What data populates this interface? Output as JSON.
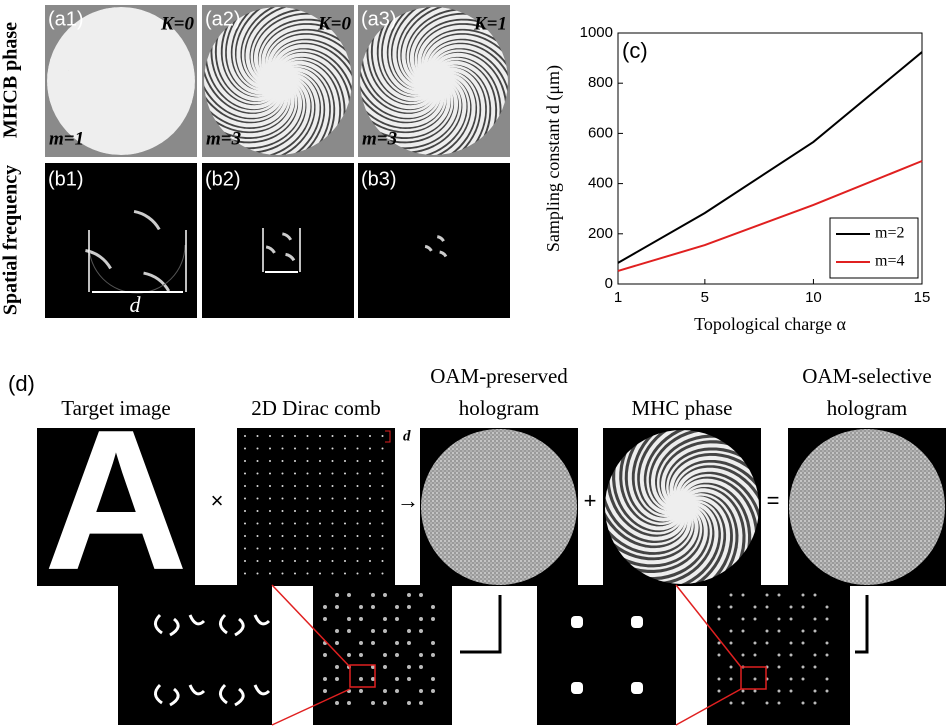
{
  "panels_a": [
    {
      "label": "(a1)",
      "K": "K=0",
      "m": "m=1"
    },
    {
      "label": "(a2)",
      "K": "K=0",
      "m": "m=3"
    },
    {
      "label": "(a3)",
      "K": "K=1",
      "m": "m=3"
    }
  ],
  "panels_b": [
    "(b1)",
    "(b2)",
    "(b3)"
  ],
  "b1_dimension": "d",
  "row_labels": [
    "MHCB phase",
    "Spatial frequency"
  ],
  "chart_data": {
    "type": "line",
    "panel_label": "(c)",
    "xlabel": "Topological charge α",
    "ylabel": "Sampling constant d (μm)",
    "x": [
      1,
      5,
      10,
      15
    ],
    "series": [
      {
        "name": "m=2",
        "color": "#000000",
        "values": [
          84,
          283,
          566,
          924
        ]
      },
      {
        "name": "m=4",
        "color": "#e02020",
        "values": [
          52,
          155,
          315,
          490
        ]
      }
    ],
    "xlim": [
      1,
      15
    ],
    "ylim": [
      0,
      1000
    ],
    "xticks": [
      1,
      5,
      10,
      15
    ],
    "yticks": [
      0,
      200,
      400,
      600,
      800,
      1000
    ],
    "legend": "lower right"
  },
  "panel_d": {
    "label": "(d)",
    "captions": [
      [
        "Target image"
      ],
      [
        "2D Dirac comb"
      ],
      [
        "OAM-preserved",
        "hologram"
      ],
      [
        "MHC phase"
      ],
      [
        "OAM-selective",
        "hologram"
      ]
    ],
    "target_letter": "A",
    "operators": [
      "×",
      "→",
      "+",
      "="
    ],
    "comb_dimension": "d"
  }
}
